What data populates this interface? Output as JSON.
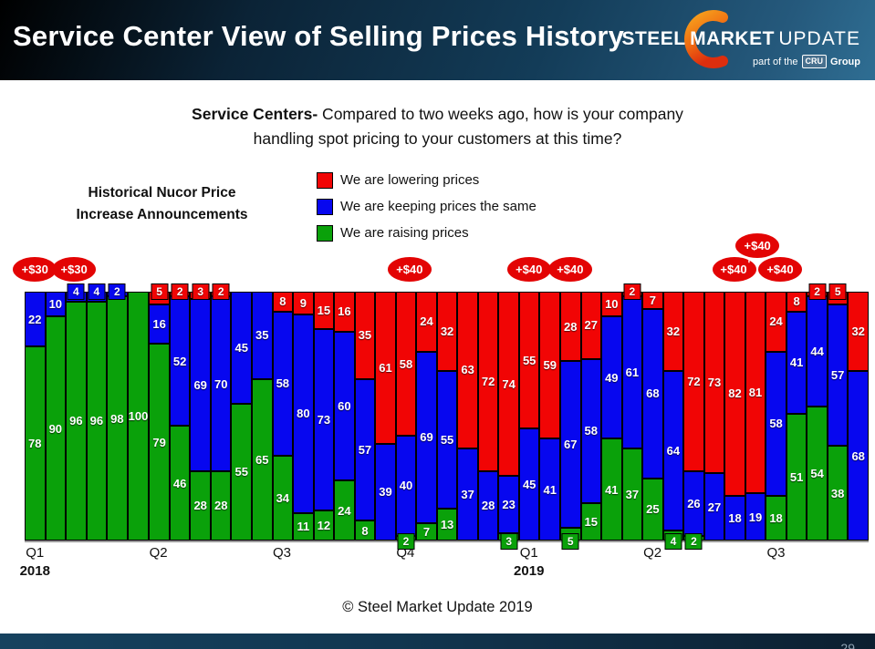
{
  "header": {
    "title": "Service Center View of Selling Prices History",
    "logo": {
      "steel": "STEEL",
      "market": "MARKET",
      "update": "UPDATE",
      "tagline_prefix": "part of the",
      "cru": "CRU",
      "tagline_suffix": "Group"
    }
  },
  "question": {
    "bold": "Service Centers-",
    "line1_rest": " Compared to two weeks ago, how is your company",
    "line2": "handling spot pricing to your customers at this time?"
  },
  "nucor_note": {
    "line1": "Historical Nucor Price",
    "line2": "Increase Announcements"
  },
  "legend": {
    "items": [
      {
        "label": "We are lowering prices",
        "key": "lowering"
      },
      {
        "label": "We are keeping prices the same",
        "key": "same"
      },
      {
        "label": "We are raising prices",
        "key": "raising"
      }
    ]
  },
  "colors": {
    "lowering_red": "#f10505",
    "same_blue": "#0707ef",
    "raising_green": "#0aa10a",
    "callout_red": "#e30404",
    "header_navy": "#133c58"
  },
  "chart_data": {
    "type": "bar",
    "subtype": "stacked-100-percent",
    "unit": "percent of respondents",
    "ylim": [
      0,
      100
    ],
    "grid": false,
    "legend_position": "top-center",
    "stack_order_top_to_bottom": [
      "lowering",
      "same",
      "raising"
    ],
    "series": [
      {
        "name": "We are lowering prices",
        "key": "lowering",
        "color": "#f10505",
        "values": [
          0,
          0,
          0,
          0,
          0,
          0,
          5,
          2,
          3,
          2,
          0,
          0,
          8,
          9,
          15,
          16,
          35,
          61,
          58,
          24,
          32,
          63,
          72,
          74,
          55,
          59,
          28,
          27,
          10,
          2,
          7,
          32,
          72,
          73,
          82,
          81,
          24,
          8,
          2,
          5,
          32
        ]
      },
      {
        "name": "We are keeping prices the same",
        "key": "same",
        "color": "#0707ef",
        "values": [
          22,
          10,
          4,
          4,
          2,
          0,
          16,
          52,
          69,
          70,
          45,
          35,
          58,
          80,
          73,
          60,
          57,
          39,
          40,
          69,
          55,
          37,
          28,
          23,
          45,
          41,
          67,
          58,
          49,
          61,
          68,
          64,
          26,
          27,
          18,
          19,
          58,
          41,
          44,
          57,
          68
        ]
      },
      {
        "name": "We are raising prices",
        "key": "raising",
        "color": "#0aa10a",
        "values": [
          78,
          90,
          96,
          96,
          98,
          100,
          79,
          46,
          28,
          28,
          55,
          65,
          34,
          11,
          12,
          24,
          8,
          0,
          2,
          7,
          13,
          0,
          0,
          3,
          0,
          0,
          5,
          15,
          41,
          37,
          25,
          4,
          2,
          0,
          0,
          0,
          18,
          51,
          54,
          38,
          0
        ]
      }
    ],
    "x_axis": {
      "quarters": [
        {
          "label": "Q1",
          "year": "2018",
          "start_bar": 1
        },
        {
          "label": "Q2",
          "start_bar": 7
        },
        {
          "label": "Q3",
          "start_bar": 13
        },
        {
          "label": "Q4",
          "start_bar": 19
        },
        {
          "label": "Q1",
          "year": "2019",
          "start_bar": 25
        },
        {
          "label": "Q2",
          "start_bar": 31
        },
        {
          "label": "Q3",
          "start_bar": 37
        }
      ]
    },
    "callouts": [
      {
        "label": "+$30",
        "bar": 1
      },
      {
        "label": "+$30",
        "bar": 2.9
      },
      {
        "label": "+$40",
        "bar": 19.2
      },
      {
        "label": "+$40",
        "bar": 25
      },
      {
        "label": "+$40",
        "bar": 27
      },
      {
        "label": "+$40",
        "bar": 35,
        "suffix": "'"
      },
      {
        "label": "+$40",
        "bar": 36.1,
        "raised": true
      },
      {
        "label": "+$40",
        "bar": 37.2
      }
    ]
  },
  "copyright": "© Steel Market Update 2019",
  "footer": {
    "page": "29"
  }
}
